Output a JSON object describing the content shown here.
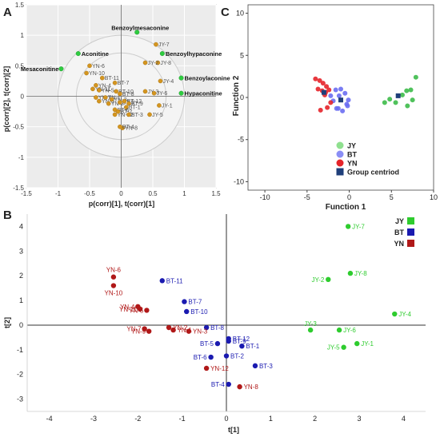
{
  "chart_data": [
    {
      "panel": "A",
      "type": "scatter",
      "xlabel": "p(corr)[1], t(corr)[1]",
      "ylabel": "p(corr)[2], t(corr)[2]",
      "xlim": [
        -1.5,
        1.5
      ],
      "ylim": [
        -1.5,
        1.5
      ],
      "xticks": [
        "-1.5",
        "-1",
        "-0.5",
        "0",
        "0.5",
        "1",
        "1.5"
      ],
      "yticks": [
        "-1.5",
        "-1",
        "-0.5",
        "0",
        "0.5",
        "1",
        "1.5"
      ],
      "colors": {
        "samples": "#d4951f",
        "markers": "#2ecc40",
        "ellipse": "#cccccc",
        "background": "#ececec"
      },
      "samples": [
        {
          "label": "JY-7",
          "x": 0.55,
          "y": 0.85
        },
        {
          "label": "JY-8",
          "x": 0.58,
          "y": 0.55
        },
        {
          "label": "JY-2",
          "x": 0.38,
          "y": 0.55
        },
        {
          "label": "JY-4",
          "x": 0.62,
          "y": 0.25
        },
        {
          "label": "JY-3",
          "x": 0.38,
          "y": 0.08
        },
        {
          "label": "JY-6",
          "x": 0.52,
          "y": 0.05
        },
        {
          "label": "JY-1",
          "x": 0.6,
          "y": -0.15
        },
        {
          "label": "JY-5",
          "x": 0.45,
          "y": -0.3
        },
        {
          "label": "YN-6",
          "x": -0.5,
          "y": 0.5
        },
        {
          "label": "YN-10",
          "x": -0.55,
          "y": 0.38
        },
        {
          "label": "YN-4",
          "x": -0.4,
          "y": 0.18
        },
        {
          "label": "YN-11",
          "x": -0.45,
          "y": 0.12
        },
        {
          "label": "YN-5",
          "x": -0.35,
          "y": 0.1
        },
        {
          "label": "YN-7",
          "x": -0.4,
          "y": -0.02
        },
        {
          "label": "YN-1",
          "x": -0.25,
          "y": -0.02
        },
        {
          "label": "YN-9",
          "x": -0.35,
          "y": -0.08
        },
        {
          "label": "YN-3",
          "x": -0.15,
          "y": -0.05
        },
        {
          "label": "YN-2",
          "x": -0.2,
          "y": -0.12
        },
        {
          "label": "YN-12",
          "x": -0.1,
          "y": -0.3
        },
        {
          "label": "YN-8",
          "x": 0.02,
          "y": -0.52
        },
        {
          "label": "BT-11",
          "x": -0.3,
          "y": 0.3
        },
        {
          "label": "BT-7",
          "x": -0.1,
          "y": 0.22
        },
        {
          "label": "BT-10",
          "x": -0.08,
          "y": 0.08
        },
        {
          "label": "BT-8",
          "x": -0.02,
          "y": 0.04
        },
        {
          "label": "BT-5",
          "x": -0.02,
          "y": -0.1
        },
        {
          "label": "BT-12",
          "x": 0.05,
          "y": -0.08
        },
        {
          "label": "BT-9",
          "x": 0.12,
          "y": -0.12
        },
        {
          "label": "BT-1",
          "x": 0.08,
          "y": -0.18
        },
        {
          "label": "BT-6",
          "x": -0.1,
          "y": -0.22
        },
        {
          "label": "BT-2",
          "x": -0.05,
          "y": -0.25
        },
        {
          "label": "BT-3",
          "x": 0.12,
          "y": -0.3
        },
        {
          "label": "BT-4",
          "x": -0.02,
          "y": -0.5
        }
      ],
      "markers": [
        {
          "label": "Benzoylmesaconine",
          "x": 0.25,
          "y": 1.05
        },
        {
          "label": "Aconitine",
          "x": -0.68,
          "y": 0.7
        },
        {
          "label": "Benzoylhypaconine",
          "x": 0.65,
          "y": 0.7
        },
        {
          "label": "Mesaconitine",
          "x": -0.95,
          "y": 0.45
        },
        {
          "label": "Benzoylaconine",
          "x": 0.95,
          "y": 0.3
        },
        {
          "label": "Hypaconitine",
          "x": 0.95,
          "y": 0.05
        }
      ]
    },
    {
      "panel": "C",
      "type": "scatter",
      "xlabel": "Function 1",
      "ylabel": "Function 2",
      "xlim": [
        -12,
        10
      ],
      "ylim": [
        -11,
        11
      ],
      "xticks": [
        "-10",
        "-5",
        "0",
        "5",
        "10"
      ],
      "yticks": [
        "10",
        "5",
        "0",
        "-5",
        "-10"
      ],
      "series": [
        {
          "name": "JY",
          "color": "#3dbb4a",
          "x": [
            4.2,
            4.8,
            5.5,
            6.3,
            6.8,
            7.3,
            7.9,
            7.5,
            6.9
          ],
          "y": [
            -0.6,
            -0.2,
            -0.6,
            0.3,
            0.8,
            0.9,
            2.4,
            -0.3,
            -1.0
          ]
        },
        {
          "name": "BT",
          "color": "#6a6ef2",
          "x": [
            -2.2,
            -1.6,
            -1.0,
            -0.5,
            -0.1,
            -0.3,
            -1.3,
            -0.8,
            -0.2,
            -1.9,
            -1.5,
            -1.2
          ],
          "y": [
            0.2,
            0.9,
            1.0,
            0.5,
            -0.3,
            -0.8,
            -1.3,
            -1.6,
            -1.0,
            -0.4,
            -1.3,
            0.2
          ]
        },
        {
          "name": "YN",
          "color": "#e5242a",
          "x": [
            -4.0,
            -3.5,
            -3.1,
            -2.7,
            -3.7,
            -3.2,
            -2.8,
            -2.4,
            -2.6,
            -3.4,
            -2.2,
            -2.9
          ],
          "y": [
            2.2,
            2.0,
            1.7,
            1.3,
            1.0,
            0.8,
            0.6,
            0.9,
            -1.2,
            -1.5,
            -0.6,
            0.3
          ]
        }
      ],
      "centroids": [
        {
          "name": "JY",
          "x": 5.8,
          "y": 0.2
        },
        {
          "name": "BT",
          "x": -1.0,
          "y": -0.3
        },
        {
          "name": "YN",
          "x": -3.0,
          "y": 0.6
        }
      ],
      "legend": [
        {
          "label": "JY",
          "color": "#8fe08f",
          "shape": "circle"
        },
        {
          "label": "BT",
          "color": "#8a8ef5",
          "shape": "circle"
        },
        {
          "label": "YN",
          "color": "#e5242a",
          "shape": "circle"
        },
        {
          "label": "Group centriod",
          "color": "#1f3f7a",
          "shape": "square"
        }
      ],
      "legend_position": "bottom-left"
    },
    {
      "panel": "B",
      "type": "scatter",
      "xlabel": "t[1]",
      "ylabel": "t[2]",
      "xlim": [
        -4.5,
        4.5
      ],
      "ylim": [
        -3.5,
        4.5
      ],
      "xticks": [
        "-4",
        "-3",
        "-2",
        "-1",
        "0",
        "1",
        "2",
        "3",
        "4"
      ],
      "yticks": [
        "4",
        "3",
        "2",
        "1",
        "0",
        "-1",
        "-2",
        "-3"
      ],
      "series": [
        {
          "name": "JY",
          "color": "#2ecc2e",
          "points": [
            {
              "label": "JY-7",
              "x": 2.75,
              "y": 4.0
            },
            {
              "label": "JY-2",
              "x": 2.3,
              "y": 1.85
            },
            {
              "label": "JY-8",
              "x": 2.8,
              "y": 2.1
            },
            {
              "label": "JY-4",
              "x": 3.8,
              "y": 0.45
            },
            {
              "label": "JY-3",
              "x": 1.9,
              "y": -0.2
            },
            {
              "label": "JY-6",
              "x": 2.55,
              "y": -0.2
            },
            {
              "label": "JY-1",
              "x": 2.95,
              "y": -0.75
            },
            {
              "label": "JY-5",
              "x": 2.65,
              "y": -0.9
            }
          ]
        },
        {
          "name": "BT",
          "color": "#1a1ab0",
          "points": [
            {
              "label": "BT-11",
              "x": -1.45,
              "y": 1.8
            },
            {
              "label": "BT-7",
              "x": -0.95,
              "y": 0.95
            },
            {
              "label": "BT-10",
              "x": -0.9,
              "y": 0.55
            },
            {
              "label": "BT-8",
              "x": -0.45,
              "y": -0.1
            },
            {
              "label": "BT-12",
              "x": 0.05,
              "y": -0.55
            },
            {
              "label": "BT-9",
              "x": 0.05,
              "y": -0.65
            },
            {
              "label": "BT-5",
              "x": -0.2,
              "y": -0.75
            },
            {
              "label": "BT-1",
              "x": 0.35,
              "y": -0.85
            },
            {
              "label": "BT-6",
              "x": -0.35,
              "y": -1.3
            },
            {
              "label": "BT-2",
              "x": 0.0,
              "y": -1.25
            },
            {
              "label": "BT-3",
              "x": 0.65,
              "y": -1.65
            },
            {
              "label": "BT-4",
              "x": 0.05,
              "y": -2.4
            }
          ]
        },
        {
          "name": "YN",
          "color": "#b01818",
          "points": [
            {
              "label": "YN-6",
              "x": -2.55,
              "y": 1.95
            },
            {
              "label": "YN-10",
              "x": -2.55,
              "y": 1.6
            },
            {
              "label": "YN-4",
              "x": -2.0,
              "y": 0.75
            },
            {
              "label": "YN-11",
              "x": -1.95,
              "y": 0.65
            },
            {
              "label": "YN-5",
              "x": -1.8,
              "y": 0.6
            },
            {
              "label": "YN-7",
              "x": -1.85,
              "y": -0.15
            },
            {
              "label": "YN-9",
              "x": -1.75,
              "y": -0.25
            },
            {
              "label": "YN-2",
              "x": -1.3,
              "y": -0.1
            },
            {
              "label": "YN-1",
              "x": -1.2,
              "y": -0.2
            },
            {
              "label": "YN-3",
              "x": -0.85,
              "y": -0.25
            },
            {
              "label": "YN-12",
              "x": -0.45,
              "y": -1.75
            },
            {
              "label": "YN-8",
              "x": 0.3,
              "y": -2.5
            }
          ]
        }
      ],
      "legend": [
        {
          "label": "JY",
          "color": "#2ecc2e"
        },
        {
          "label": "BT",
          "color": "#1a1ab0"
        },
        {
          "label": "YN",
          "color": "#b01818"
        }
      ],
      "legend_position": "top-right"
    }
  ],
  "panel_letters": {
    "a": "A",
    "b": "B",
    "c": "C"
  }
}
